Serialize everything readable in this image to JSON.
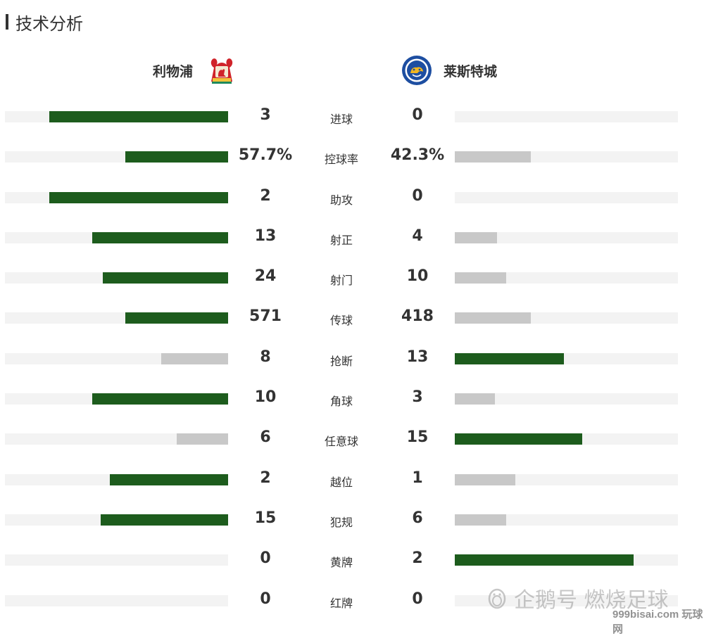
{
  "section": {
    "title": "技术分析"
  },
  "home": {
    "name": "利物浦",
    "crest_text": "LIVERPOOL F.C."
  },
  "away": {
    "name": "莱斯特城",
    "crest_text": "LEICESTER CITY"
  },
  "colors": {
    "leading": "#1d5c1d",
    "trailing": "#c8c8c8",
    "track": "#f3f3f3"
  },
  "stats": [
    {
      "label": "进球",
      "home": "3",
      "away": "0",
      "home_fill": 0.8,
      "away_fill": 0.0,
      "leader": "home"
    },
    {
      "label": "控球率",
      "home": "57.7%",
      "away": "42.3%",
      "home_fill": 0.46,
      "away_fill": 0.34,
      "leader": "home"
    },
    {
      "label": "助攻",
      "home": "2",
      "away": "0",
      "home_fill": 0.8,
      "away_fill": 0.0,
      "leader": "home"
    },
    {
      "label": "射正",
      "home": "13",
      "away": "4",
      "home_fill": 0.61,
      "away_fill": 0.19,
      "leader": "home"
    },
    {
      "label": "射门",
      "home": "24",
      "away": "10",
      "home_fill": 0.56,
      "away_fill": 0.23,
      "leader": "home"
    },
    {
      "label": "传球",
      "home": "571",
      "away": "418",
      "home_fill": 0.46,
      "away_fill": 0.34,
      "leader": "home"
    },
    {
      "label": "抢断",
      "home": "8",
      "away": "13",
      "home_fill": 0.3,
      "away_fill": 0.49,
      "leader": "away"
    },
    {
      "label": "角球",
      "home": "10",
      "away": "3",
      "home_fill": 0.61,
      "away_fill": 0.18,
      "leader": "home"
    },
    {
      "label": "任意球",
      "home": "6",
      "away": "15",
      "home_fill": 0.23,
      "away_fill": 0.57,
      "leader": "away"
    },
    {
      "label": "越位",
      "home": "2",
      "away": "1",
      "home_fill": 0.53,
      "away_fill": 0.27,
      "leader": "home"
    },
    {
      "label": "犯规",
      "home": "15",
      "away": "6",
      "home_fill": 0.57,
      "away_fill": 0.23,
      "leader": "home"
    },
    {
      "label": "黄牌",
      "home": "0",
      "away": "2",
      "home_fill": 0.0,
      "away_fill": 0.8,
      "leader": "away"
    },
    {
      "label": "红牌",
      "home": "0",
      "away": "0",
      "home_fill": 0.0,
      "away_fill": 0.0,
      "leader": "none"
    }
  ],
  "watermark": {
    "text": "企鹅号 燃烧足球",
    "site": "999bisai.com 玩球网"
  }
}
